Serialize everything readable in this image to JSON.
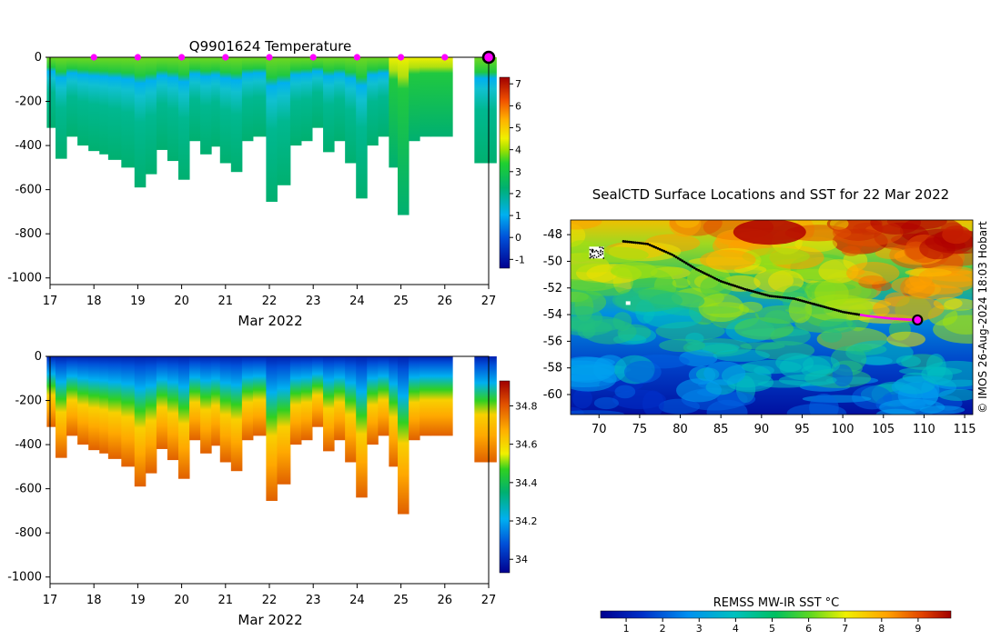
{
  "chart_data": [
    {
      "type": "heatmap",
      "variable": "temperature",
      "title": "Q9901624  Temperature",
      "xlabel": "Mar 2022",
      "xticks": [
        "17",
        "18",
        "19",
        "20",
        "21",
        "22",
        "23",
        "24",
        "25",
        "26",
        "27"
      ],
      "xlim": [
        17,
        27
      ],
      "yticks": [
        "0",
        "-200",
        "-400",
        "-600",
        "-800",
        "-1000"
      ],
      "ylim": [
        -1030,
        0
      ],
      "colorbar_ticks": [
        "7",
        "6",
        "5",
        "4",
        "3",
        "2",
        "1",
        "0",
        "-1"
      ],
      "colorbar_range": [
        -1.4,
        7.3
      ],
      "surface_markers_x": [
        18,
        19,
        20,
        21,
        22,
        23,
        24,
        25,
        26
      ],
      "current_position_x": 27,
      "profiles": [
        {
          "t": 17.05,
          "depth": 320
        },
        {
          "t": 17.25,
          "depth": 460
        },
        {
          "t": 17.5,
          "depth": 360
        },
        {
          "t": 17.75,
          "depth": 400
        },
        {
          "t": 18.0,
          "depth": 425
        },
        {
          "t": 18.25,
          "depth": 440
        },
        {
          "t": 18.45,
          "depth": 465
        },
        {
          "t": 18.75,
          "depth": 500
        },
        {
          "t": 19.05,
          "depth": 590
        },
        {
          "t": 19.3,
          "depth": 530
        },
        {
          "t": 19.55,
          "depth": 420
        },
        {
          "t": 19.8,
          "depth": 470
        },
        {
          "t": 20.05,
          "depth": 555
        },
        {
          "t": 20.3,
          "depth": 380
        },
        {
          "t": 20.55,
          "depth": 440
        },
        {
          "t": 20.8,
          "depth": 405
        },
        {
          "t": 21.0,
          "depth": 480
        },
        {
          "t": 21.25,
          "depth": 520
        },
        {
          "t": 21.5,
          "depth": 380
        },
        {
          "t": 21.75,
          "depth": 360
        },
        {
          "t": 22.05,
          "depth": 655
        },
        {
          "t": 22.3,
          "depth": 580
        },
        {
          "t": 22.6,
          "depth": 400
        },
        {
          "t": 22.85,
          "depth": 380
        },
        {
          "t": 23.1,
          "depth": 320
        },
        {
          "t": 23.35,
          "depth": 430
        },
        {
          "t": 23.6,
          "depth": 380
        },
        {
          "t": 23.85,
          "depth": 480
        },
        {
          "t": 24.1,
          "depth": 640
        },
        {
          "t": 24.35,
          "depth": 400
        },
        {
          "t": 24.6,
          "depth": 360
        },
        {
          "t": 24.85,
          "depth": 500
        },
        {
          "t": 25.05,
          "depth": 715
        },
        {
          "t": 25.3,
          "depth": 380
        },
        {
          "t": 25.55,
          "depth": 360
        },
        {
          "t": 25.8,
          "depth": 360
        },
        {
          "t": 26.8,
          "depth": 480
        }
      ]
    },
    {
      "type": "heatmap",
      "variable": "salinity",
      "title": "",
      "xlabel": "Mar 2022",
      "xticks": [
        "17",
        "18",
        "19",
        "20",
        "21",
        "22",
        "23",
        "24",
        "25",
        "26",
        "27"
      ],
      "xlim": [
        17,
        27
      ],
      "yticks": [
        "0",
        "-200",
        "-400",
        "-600",
        "-800",
        "-1000"
      ],
      "ylim": [
        -1030,
        0
      ],
      "colorbar_ticks": [
        "34.8",
        "34.6",
        "34.4",
        "34.2",
        "34"
      ],
      "colorbar_range": [
        33.93,
        34.93
      ]
    },
    {
      "type": "heatmap",
      "variable": "sea_surface_temperature",
      "title": "SealCTD Surface Locations and SST for 22 Mar 2022",
      "xticks": [
        "70",
        "75",
        "80",
        "85",
        "90",
        "95",
        "100",
        "105",
        "110",
        "115"
      ],
      "xlim": [
        66.5,
        116
      ],
      "yticks": [
        "-48",
        "-50",
        "-52",
        "-54",
        "-56",
        "-58",
        "-60"
      ],
      "ylim": [
        -61.5,
        -46.9
      ],
      "track_lon": [
        73,
        76,
        79,
        82,
        85,
        88,
        91,
        94,
        97,
        100,
        103,
        106,
        109
      ],
      "track_lat": [
        -48.5,
        -48.7,
        -49.5,
        -50.6,
        -51.5,
        -52.1,
        -52.6,
        -52.8,
        -53.3,
        -53.8,
        -54.1,
        -54.3,
        -54.4
      ],
      "current_position": {
        "lon": 109.2,
        "lat": -54.4
      },
      "colorbar_label": "REMSS MW-IR SST °C",
      "colorbar_ticks": [
        "1",
        "2",
        "3",
        "4",
        "5",
        "6",
        "7",
        "8",
        "9"
      ],
      "colorbar_range": [
        0.3,
        9.9
      ],
      "credit": "© IMOS 26-Aug-2024 18:03 Hobart"
    }
  ]
}
